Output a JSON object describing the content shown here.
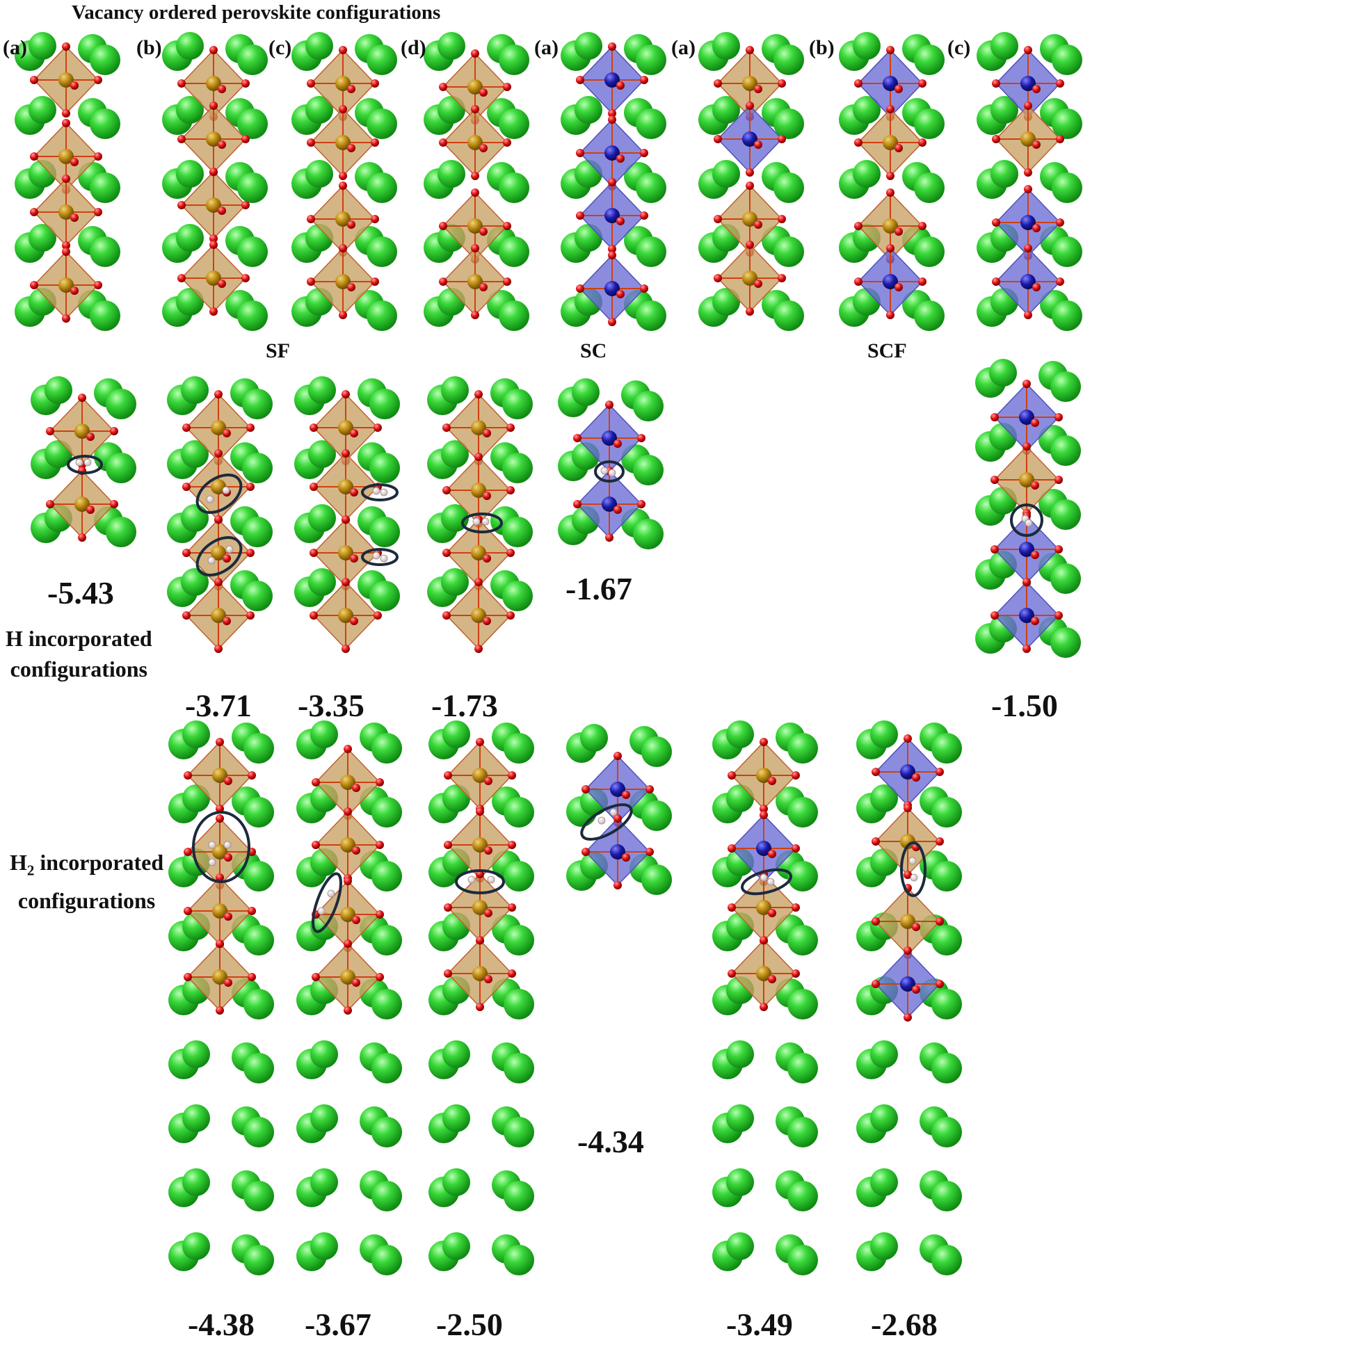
{
  "title": "Vacancy ordered perovskite configurations",
  "panel_labels": [
    "(a)",
    "(b)",
    "(c)",
    "(d)",
    "(a)",
    "(a)",
    "(b)",
    "(c)"
  ],
  "group_labels": [
    "SF",
    "SC",
    "SCF"
  ],
  "row_labels": {
    "h": {
      "line1": "H incorporated",
      "line2": "configurations"
    },
    "h2": {
      "prefix": "H",
      "sub": "2",
      "line1_rest": " incorporated",
      "line2": "configurations"
    }
  },
  "energies": {
    "h_row": [
      "-5.43",
      "-3.71",
      "-3.35",
      "-1.73",
      "-1.67",
      "-1.50"
    ],
    "h2_row": [
      "-4.38",
      "-3.67",
      "-2.50",
      "-4.34",
      "-3.49",
      "-2.68"
    ]
  },
  "colors": {
    "a_site_atom": "#22cc22",
    "fe_polyhedron": "#c8a064",
    "co_polyhedron": "#6b6bd6",
    "fe_atom": "#b8860b",
    "co_atom": "#1a1aa8",
    "oxygen_atom": "#e01010",
    "hydrogen_atom": "#f0e8e8",
    "highlight_ellipse": "#1c2a3c"
  }
}
